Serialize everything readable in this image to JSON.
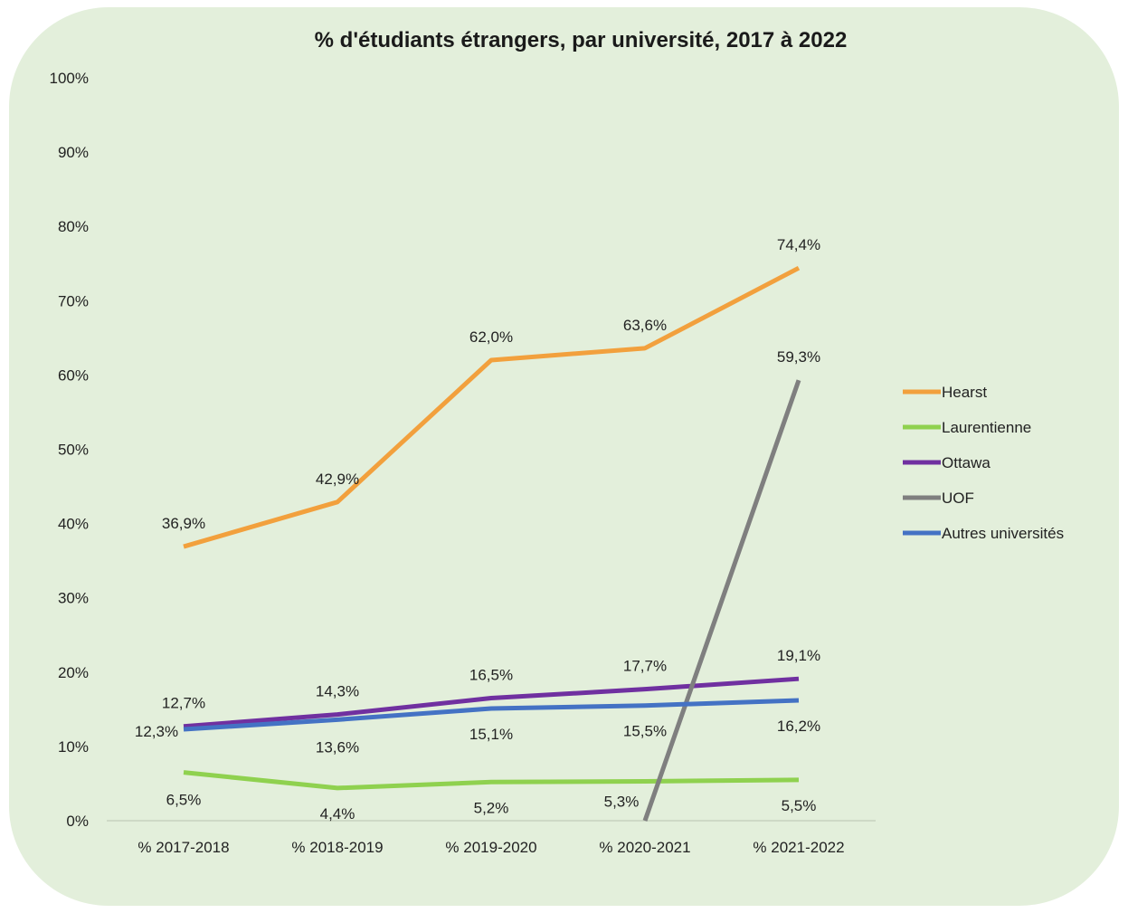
{
  "chart_data": {
    "type": "line",
    "title": "% d'étudiants étrangers, par université, 2017 à 2022",
    "xlabel": "",
    "ylabel": "",
    "ylim": [
      0,
      100
    ],
    "y_ticks": [
      "0%",
      "10%",
      "20%",
      "30%",
      "40%",
      "50%",
      "60%",
      "70%",
      "80%",
      "90%",
      "100%"
    ],
    "categories": [
      "% 2017-2018",
      "% 2018-2019",
      "% 2019-2020",
      "% 2020-2021",
      "% 2021-2022"
    ],
    "grid": false,
    "legend_position": "right",
    "series": [
      {
        "name": "Hearst",
        "color": "#f2a03d",
        "values": [
          36.9,
          42.9,
          62.0,
          63.6,
          74.4
        ],
        "labels": [
          "36,9%",
          "42,9%",
          "62,0%",
          "63,6%",
          "74,4%"
        ]
      },
      {
        "name": "Laurentienne",
        "color": "#8fd14f",
        "values": [
          6.5,
          4.4,
          5.2,
          5.3,
          5.5
        ],
        "labels": [
          "6,5%",
          "4,4%",
          "5,2%",
          "5,3%",
          "5,5%"
        ]
      },
      {
        "name": "Ottawa",
        "color": "#7030a0",
        "values": [
          12.7,
          14.3,
          16.5,
          17.7,
          19.1
        ],
        "labels": [
          "12,7%",
          "14,3%",
          "16,5%",
          "17,7%",
          "19,1%"
        ]
      },
      {
        "name": "UOF",
        "color": "#7f7f7f",
        "values": [
          null,
          null,
          null,
          0,
          59.3
        ],
        "labels": [
          null,
          null,
          null,
          null,
          "59,3%"
        ]
      },
      {
        "name": "Autres universités",
        "color": "#4472c4",
        "values": [
          12.3,
          13.6,
          15.1,
          15.5,
          16.2
        ],
        "labels": [
          "12,3%",
          "13,6%",
          "15,1%",
          "15,5%",
          "16,2%"
        ]
      }
    ]
  }
}
